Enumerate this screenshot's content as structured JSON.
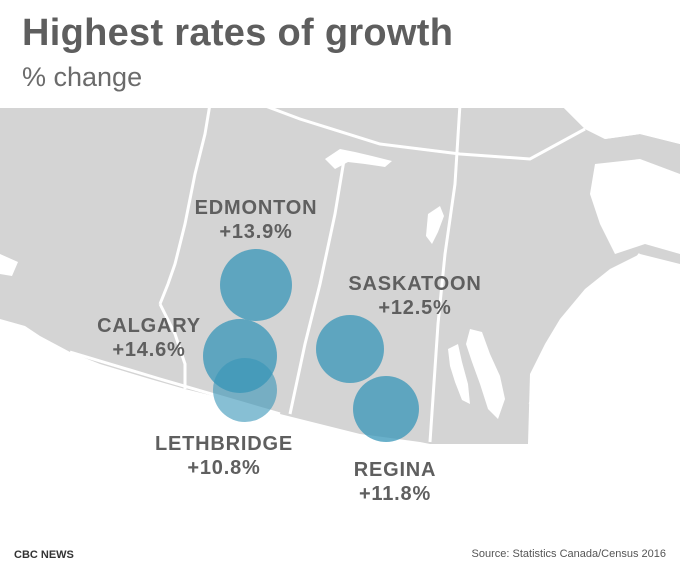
{
  "title": "Highest rates of growth",
  "subtitle": "% change",
  "colors": {
    "land": "#d4d4d4",
    "water": "#ffffff",
    "border": "#ffffff",
    "bubble": "#3795b8",
    "label": "#5f5f5f"
  },
  "cities": [
    {
      "id": "edmonton",
      "name": "EDMONTON",
      "value": "+13.9%",
      "growth_pct": 13.9
    },
    {
      "id": "calgary",
      "name": "CALGARY",
      "value": "+14.6%",
      "growth_pct": 14.6
    },
    {
      "id": "lethbridge",
      "name": "LETHBRIDGE",
      "value": "+10.8%",
      "growth_pct": 10.8
    },
    {
      "id": "saskatoon",
      "name": "SASKATOON",
      "value": "+12.5%",
      "growth_pct": 12.5
    },
    {
      "id": "regina",
      "name": "REGINA",
      "value": "+11.8%",
      "growth_pct": 11.8
    }
  ],
  "footer": {
    "brand": "CBC NEWS",
    "source": "Source: Statistics Canada/Census 2016"
  }
}
